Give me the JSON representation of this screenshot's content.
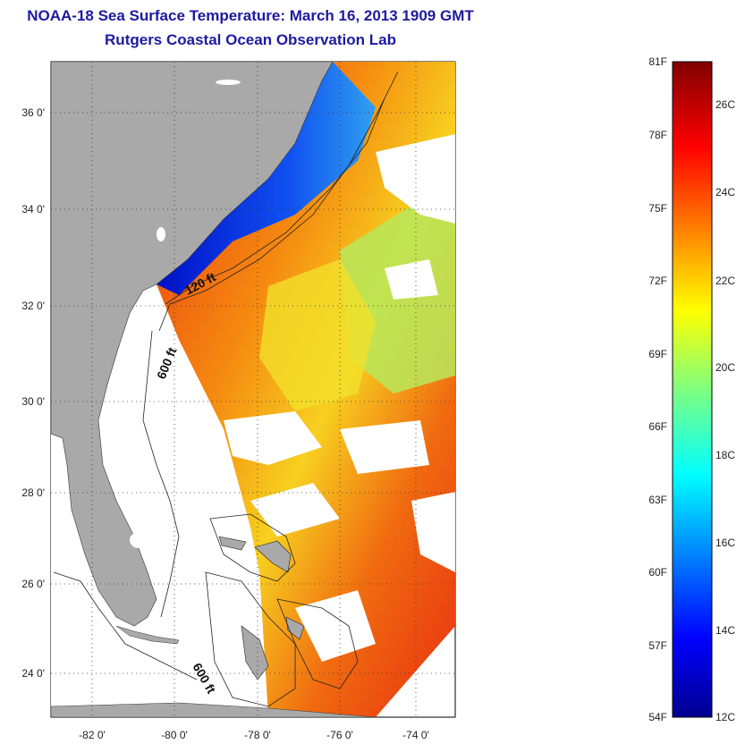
{
  "title": "NOAA-18 Sea Surface Temperature:  March 16, 2013 1909 GMT",
  "subtitle": "Rutgers Coastal Ocean Observation Lab",
  "map": {
    "lat_labels": [
      "36 0'",
      "34 0'",
      "32 0'",
      "30 0'",
      "28 0'",
      "26 0'",
      "24 0'"
    ],
    "lon_labels": [
      "-82 0'",
      "-80 0'",
      "-78 0'",
      "-76 0'",
      "-74 0'"
    ],
    "lon_range": [
      -83,
      -73
    ],
    "lat_range": [
      23,
      37
    ],
    "contour_labels": [
      "120 ft",
      "600 ft",
      "600 ft"
    ],
    "colors": {
      "land": "#a9a9a9",
      "ocean_no_data": "#ffffff",
      "warm": "#f03010",
      "cool": "#1030e0"
    }
  },
  "colorbar": {
    "fahrenheit_labels": [
      "81F",
      "78F",
      "75F",
      "72F",
      "69F",
      "66F",
      "63F",
      "60F",
      "57F",
      "54F"
    ],
    "celsius_labels": [
      "26C",
      "24C",
      "22C",
      "20C",
      "18C",
      "16C",
      "14C",
      "12C"
    ],
    "range_f": [
      54,
      81
    ],
    "range_c": [
      12,
      27.2
    ],
    "colormap": "jet"
  }
}
